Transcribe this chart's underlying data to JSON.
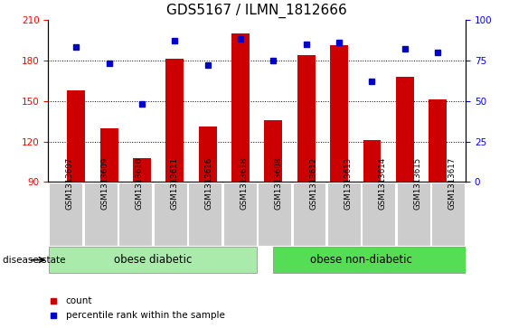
{
  "title": "GDS5167 / ILMN_1812666",
  "samples": [
    "GSM1313607",
    "GSM1313609",
    "GSM1313610",
    "GSM1313611",
    "GSM1313616",
    "GSM1313618",
    "GSM1313608",
    "GSM1313612",
    "GSM1313613",
    "GSM1313614",
    "GSM1313615",
    "GSM1313617"
  ],
  "bar_values": [
    158,
    130,
    108,
    181,
    131,
    200,
    136,
    184,
    191,
    121,
    168,
    151
  ],
  "dot_values": [
    83,
    73,
    48,
    87,
    72,
    88,
    75,
    85,
    86,
    62,
    82,
    80
  ],
  "bar_bottom": 90,
  "ylim_left": [
    90,
    210
  ],
  "ylim_right": [
    0,
    100
  ],
  "yticks_left": [
    90,
    120,
    150,
    180,
    210
  ],
  "yticks_right": [
    0,
    25,
    50,
    75,
    100
  ],
  "bar_color": "#CC0000",
  "dot_color": "#0000CC",
  "group1_label": "obese diabetic",
  "group2_label": "obese non-diabetic",
  "group1_count": 6,
  "group2_count": 6,
  "group1_color": "#AAEAAA",
  "group2_color": "#55DD55",
  "disease_label": "disease state",
  "legend_bar": "count",
  "legend_dot": "percentile rank within the sample",
  "xlabel_area_color": "#CCCCCC",
  "dotted_lines": [
    120,
    150,
    180
  ],
  "title_fontsize": 11,
  "tick_fontsize": 7.5,
  "label_fontsize": 8.5
}
